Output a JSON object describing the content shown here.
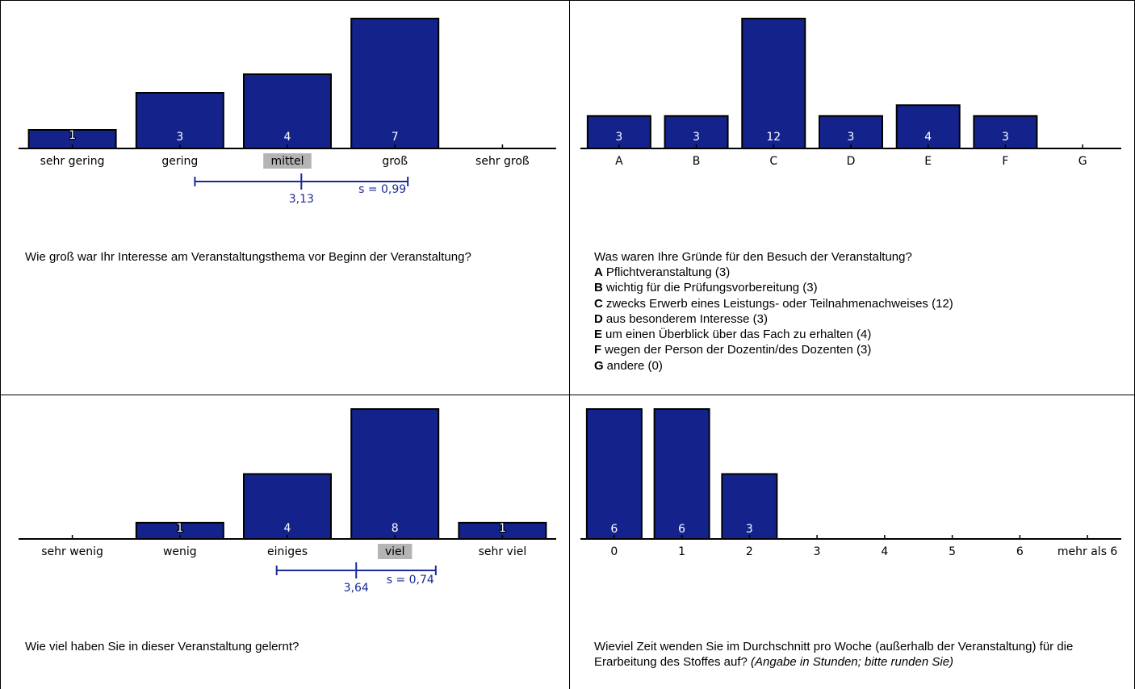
{
  "colors": {
    "bar": "#14238c",
    "stat": "#1a2a9a",
    "highlight": "#b4b4b4"
  },
  "panels": [
    {
      "question": "Wie groß war Ihr Interesse am Veranstaltungsthema vor Beginn der Veranstaltung?",
      "chart_data": {
        "type": "bar",
        "categories": [
          "sehr gering",
          "gering",
          "mittel",
          "groß",
          "sehr groß"
        ],
        "values": [
          1,
          3,
          4,
          7,
          0
        ],
        "ylim": [
          0,
          7
        ],
        "highlight_category": "mittel",
        "mean_label": "3,13",
        "sd_label": "s = 0,99",
        "mean": 3.13,
        "sd": 0.99
      }
    },
    {
      "question": "Was waren Ihre Gründe für den Besuch der Veranstaltung?",
      "legend": [
        {
          "key": "A",
          "text": "Pflichtveranstaltung (3)"
        },
        {
          "key": "B",
          "text": "wichtig für die Prüfungsvorbereitung (3)"
        },
        {
          "key": "C",
          "text": "zwecks Erwerb eines Leistungs- oder Teilnahmenachweises (12)"
        },
        {
          "key": "D",
          "text": "aus besonderem Interesse (3)"
        },
        {
          "key": "E",
          "text": "um einen Überblick über das Fach zu erhalten (4)"
        },
        {
          "key": "F",
          "text": "wegen der Person der Dozentin/des Dozenten (3)"
        },
        {
          "key": "G",
          "text": "andere (0)"
        }
      ],
      "chart_data": {
        "type": "bar",
        "categories": [
          "A",
          "B",
          "C",
          "D",
          "E",
          "F",
          "G"
        ],
        "values": [
          3,
          3,
          12,
          3,
          4,
          3,
          0
        ],
        "ylim": [
          0,
          12
        ]
      }
    },
    {
      "question": "Wie viel haben Sie in dieser Veranstaltung gelernt?",
      "chart_data": {
        "type": "bar",
        "categories": [
          "sehr wenig",
          "wenig",
          "einiges",
          "viel",
          "sehr viel"
        ],
        "values": [
          0,
          1,
          4,
          8,
          1
        ],
        "ylim": [
          0,
          8
        ],
        "highlight_category": "viel",
        "mean_label": "3,64",
        "sd_label": "s = 0,74",
        "mean": 3.64,
        "sd": 0.74
      }
    },
    {
      "question": "Wieviel Zeit wenden Sie im Durchschnitt pro Woche (außerhalb der Veranstaltung) für die Erarbeitung des Stoffes auf?",
      "question_hint": "(Angabe in Stunden; bitte runden Sie)",
      "chart_data": {
        "type": "bar",
        "categories": [
          "0",
          "1",
          "2",
          "3",
          "4",
          "5",
          "6",
          "mehr als 6"
        ],
        "values": [
          6,
          6,
          3,
          0,
          0,
          0,
          0,
          0
        ],
        "ylim": [
          0,
          6
        ]
      }
    }
  ]
}
